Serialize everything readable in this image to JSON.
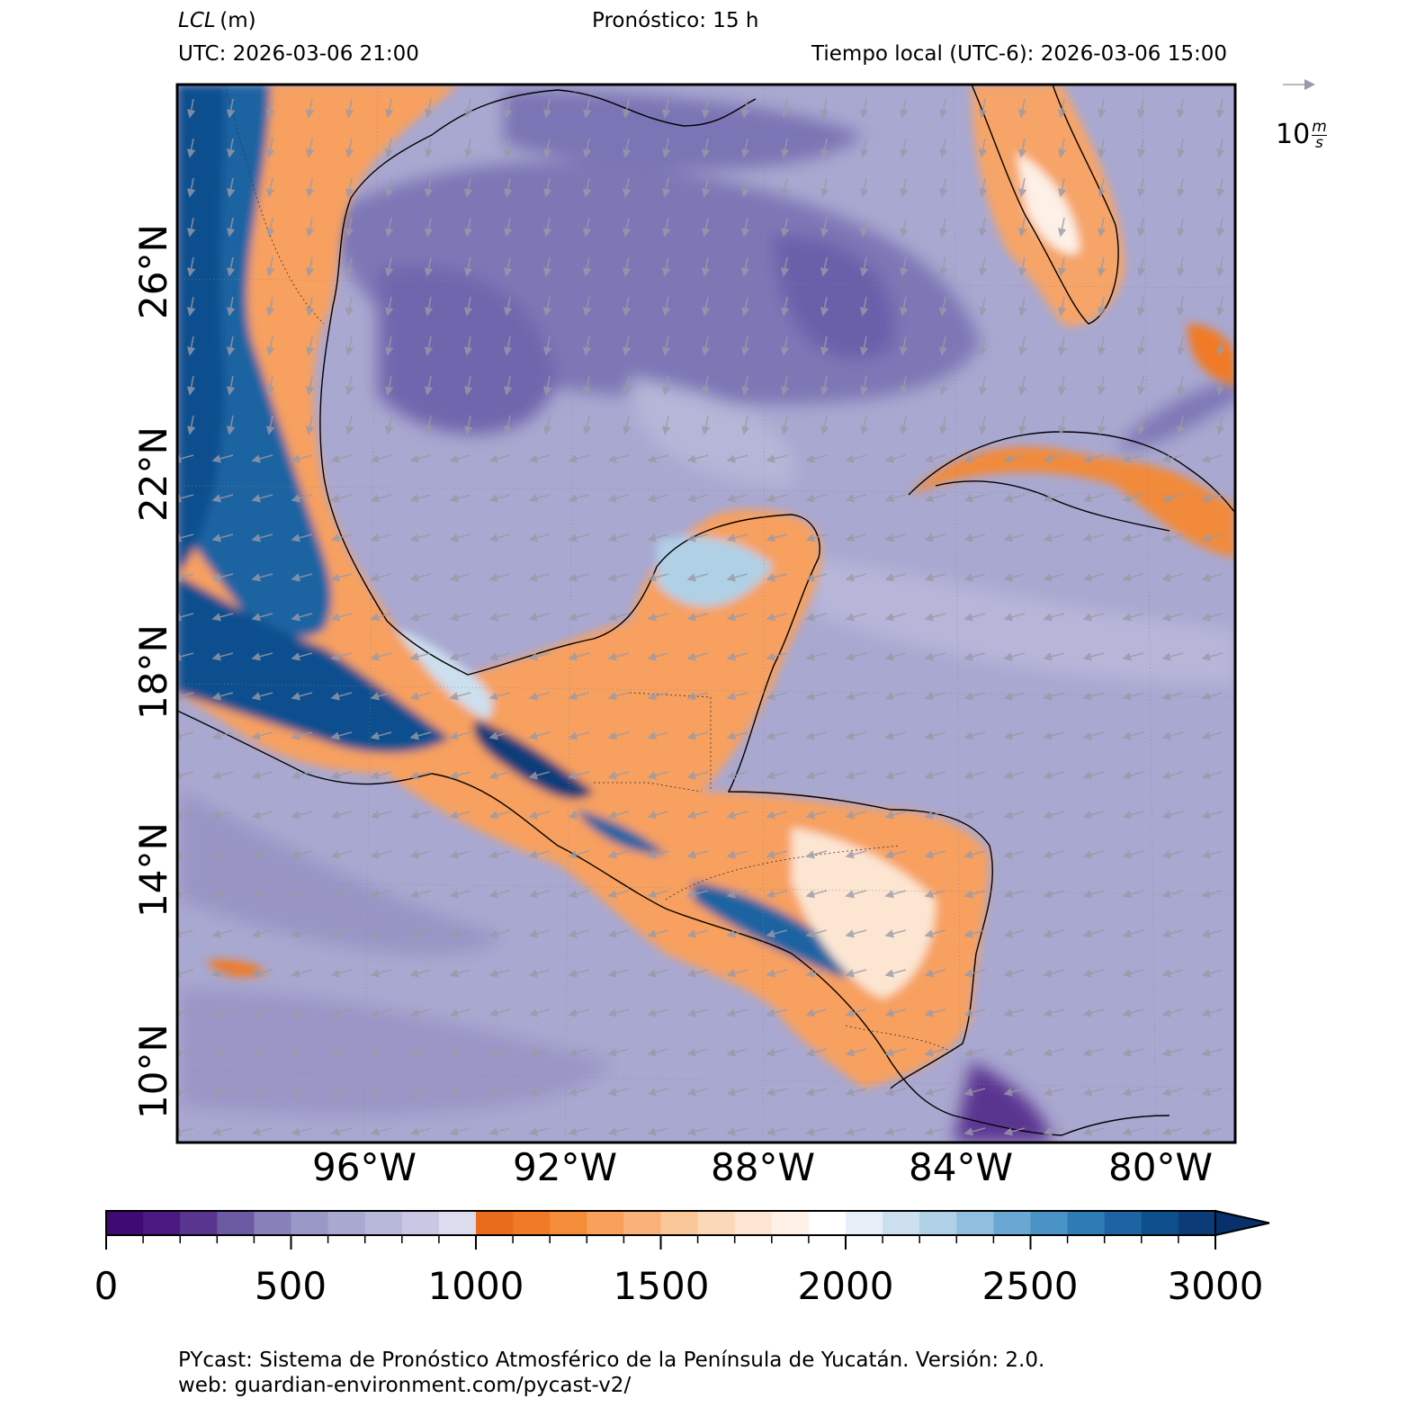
{
  "header": {
    "variable": "LCL",
    "unit": "(m)",
    "forecast": "Pronóstico: 15 h",
    "utc": "UTC:  2026-03-06 21:00",
    "local": "Tiempo local (UTC-6): 2026-03-06 15:00"
  },
  "axes": {
    "lat_labels": [
      "26°N",
      "22°N",
      "18°N",
      "14°N",
      "10°N"
    ],
    "lon_labels": [
      "96°W",
      "92°W",
      "88°W",
      "84°W",
      "80°W"
    ]
  },
  "wind_key": {
    "value": "10",
    "unit_num": "m",
    "unit_den": "s"
  },
  "colorbar": {
    "ticks": [
      "0",
      "500",
      "1000",
      "1500",
      "2000",
      "2500",
      "3000"
    ],
    "min": 0,
    "max": 3000,
    "step": 100,
    "extend": "max",
    "colors": [
      "#3f0a73",
      "#4a1a80",
      "#5a3590",
      "#6c5aa2",
      "#8682b9",
      "#9a98c6",
      "#a9a8d0",
      "#b8b8da",
      "#c8c8e4",
      "#dcdcee",
      "#e86c1c",
      "#f07a26",
      "#f58c3a",
      "#f8a15a",
      "#f9b27a",
      "#fac898",
      "#fbd8b8",
      "#fce6d2",
      "#fdf0e6",
      "#ffffff",
      "#e6eff8",
      "#ccdfee",
      "#b0d0e6",
      "#8fbede",
      "#6aa8d3",
      "#4a93c6",
      "#2f7bb6",
      "#1c64a2",
      "#0e4f8e",
      "#0b3c78"
    ],
    "extend_color": "#08306b"
  },
  "footer": {
    "line1": "PYcast: Sistema de Pronóstico Atmosférico de la Península de Yucatán. Versión: 2.0.",
    "line2": "web: guardian-environment.com/pycast-v2/"
  }
}
